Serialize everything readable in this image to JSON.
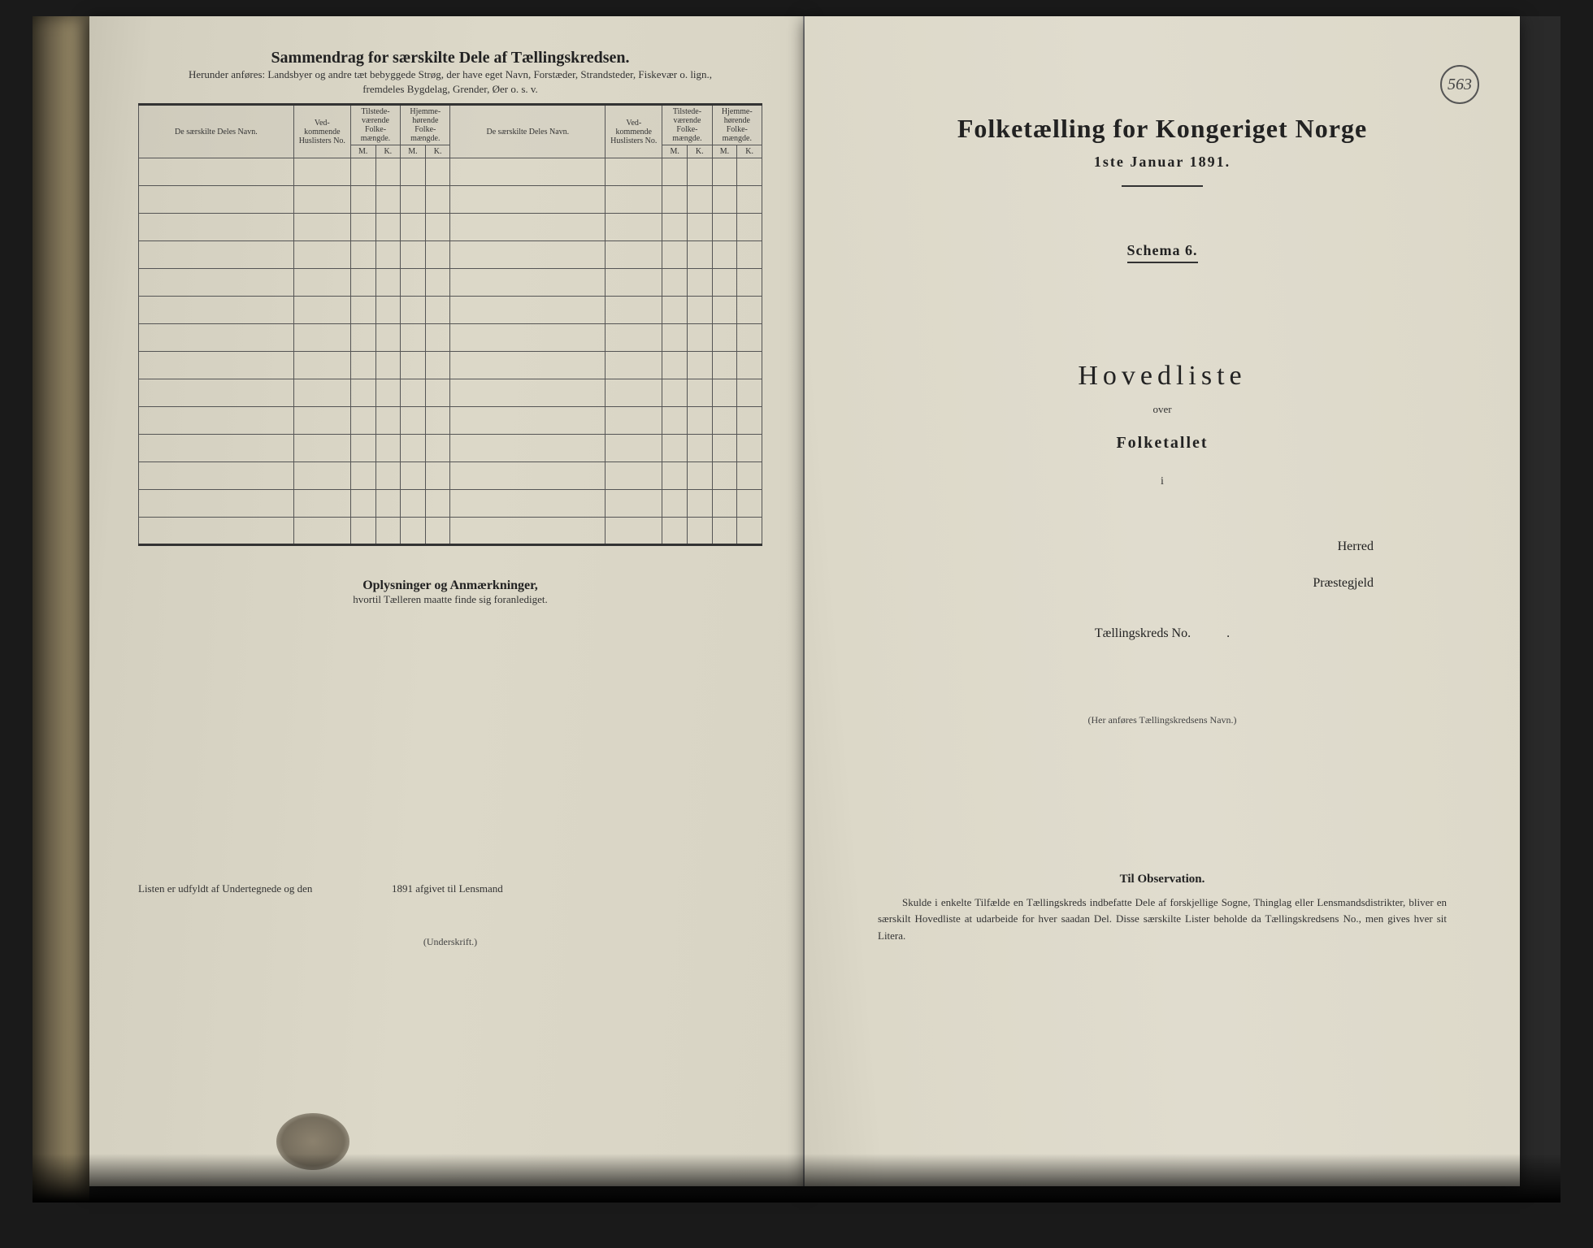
{
  "leftPage": {
    "title": "Sammendrag for særskilte Dele af Tællingskredsen.",
    "sub1": "Herunder anføres: Landsbyer og andre tæt bebyggede Strøg, der have eget Navn, Forstæder, Strandsteder, Fiskevær o. lign.,",
    "sub2": "fremdeles Bygdelag, Grender, Øer o. s. v.",
    "table": {
      "col_name": "De særskilte Deles Navn.",
      "col_ved": "Ved-kommende Huslisters No.",
      "col_tilstede": "Tilstede-værende Folke-mængde.",
      "col_hjemme": "Hjemme-hørende Folke-mængde.",
      "m": "M.",
      "k": "K.",
      "rowCount": 14
    },
    "oplys_title": "Oplysninger og Anmærkninger,",
    "oplys_sub": "hvortil Tælleren maatte finde sig foranlediget.",
    "signature_a": "Listen er udfyldt af Undertegnede og den",
    "signature_b": "1891 afgivet til Lensmand",
    "underskrift": "(Underskrift.)"
  },
  "rightPage": {
    "stamp": "563",
    "title": "Folketælling for Kongeriget Norge",
    "date": "1ste Januar 1891.",
    "schema": "Schema 6.",
    "hovedliste": "Hovedliste",
    "over": "over",
    "folketallet": "Folketallet",
    "ii": "i",
    "herred": "Herred",
    "praeste": "Præstegjeld",
    "tkreds": "Tællingskreds No.",
    "her_anf": "(Her anføres Tællingskredsens Navn.)",
    "til_obs": "Til Observation.",
    "obs_text": "Skulde i enkelte Tilfælde en Tællingskreds indbefatte Dele af forskjellige Sogne, Thinglag eller Lensmandsdistrikter, bliver en særskilt Hovedliste at udarbeide for hver saadan Del. Disse særskilte Lister beholde da Tællingskredsens No., men gives hver sit Litera."
  },
  "style": {
    "page_bg": "#dcd8c8",
    "text_color": "#222",
    "border_color": "#333"
  }
}
